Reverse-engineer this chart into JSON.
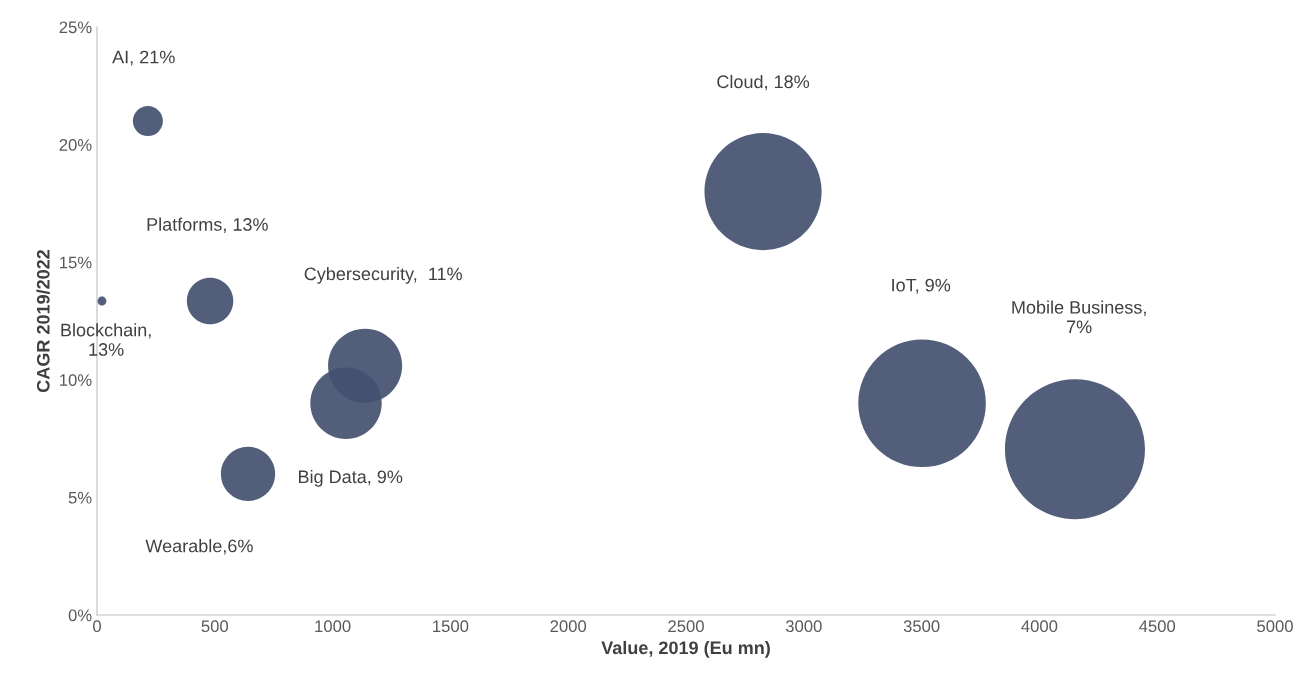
{
  "chart_data": {
    "type": "bubble",
    "xlabel": "Value, 2019 (Eu mn)",
    "ylabel": "CAGR 2019/2022",
    "x": [
      216,
      480,
      21,
      1138,
      1057,
      641,
      2827,
      3502,
      4151
    ],
    "series": [
      {
        "color": "#44506f",
        "values": [
          21,
          13.35,
          13.35,
          10.6,
          9,
          6,
          18,
          9,
          7.05
        ],
        "sizes": [
          0.046,
          0.11,
          0.004,
          0.28,
          0.26,
          0.15,
          0.7,
          0.83,
          1
        ],
        "value_labels": [
          "AI, 21%",
          "Platforms, 13%",
          "Blockchain,\n13%",
          "Cybersecurity,  11%",
          "Big Data, 9%",
          "Wearable,6%",
          "Cloud, 18%",
          "IoT, 9%",
          "Mobile Business,\n7%"
        ]
      }
    ],
    "xlim": [
      0,
      5000
    ],
    "xticks": [
      0,
      500,
      1000,
      1500,
      2000,
      2500,
      3000,
      3500,
      4000,
      4500,
      5000
    ],
    "ylim": [
      0,
      25
    ],
    "yticks": [
      {
        "value": 0,
        "label": "0%"
      },
      {
        "value": 5,
        "label": "5%"
      },
      {
        "value": 10,
        "label": "10%"
      },
      {
        "value": 15,
        "label": "15%"
      },
      {
        "value": 20,
        "label": "20%"
      },
      {
        "value": 25,
        "label": "25%"
      }
    ],
    "grid": false,
    "legend": false
  }
}
